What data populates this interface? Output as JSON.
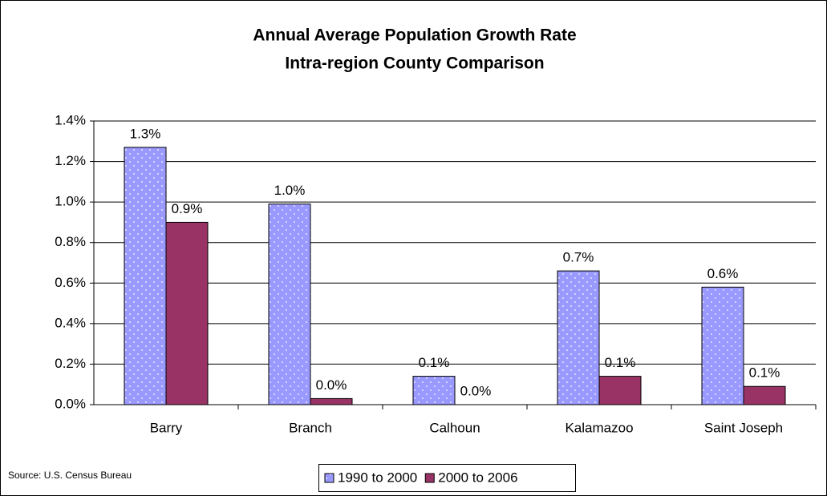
{
  "chart_data": {
    "type": "bar",
    "title": "Annual Average Population Growth Rate",
    "subtitle": "Intra-region County Comparison",
    "source": "Source: U.S. Census Bureau",
    "categories": [
      "Barry",
      "Branch",
      "Calhoun",
      "Kalamazoo",
      "Saint Joseph"
    ],
    "series": [
      {
        "name": "1990 to 2000",
        "color": "#9999ff",
        "pattern": "dots",
        "values": [
          1.27,
          0.99,
          0.14,
          0.66,
          0.58
        ],
        "value_labels": [
          "1.3%",
          "1.0%",
          "0.1%",
          "0.7%",
          "0.6%"
        ]
      },
      {
        "name": "2000 to 2006",
        "color": "#993366",
        "values": [
          0.9,
          0.03,
          0.0,
          0.14,
          0.09
        ],
        "value_labels": [
          "0.9%",
          "0.0%",
          "0.0%",
          "0.1%",
          "0.1%"
        ]
      }
    ],
    "ylim": [
      0,
      1.4
    ],
    "yticks": [
      {
        "value": 0,
        "label": "0.0%"
      },
      {
        "value": 0.2,
        "label": "0.2%"
      },
      {
        "value": 0.4,
        "label": "0.4%"
      },
      {
        "value": 0.6,
        "label": "0.6%"
      },
      {
        "value": 0.8,
        "label": "0.8%"
      },
      {
        "value": 1.0,
        "label": "1.0%"
      },
      {
        "value": 1.2,
        "label": "1.2%"
      },
      {
        "value": 1.4,
        "label": "1.4%"
      }
    ],
    "grid": true,
    "legend": "bottom"
  }
}
